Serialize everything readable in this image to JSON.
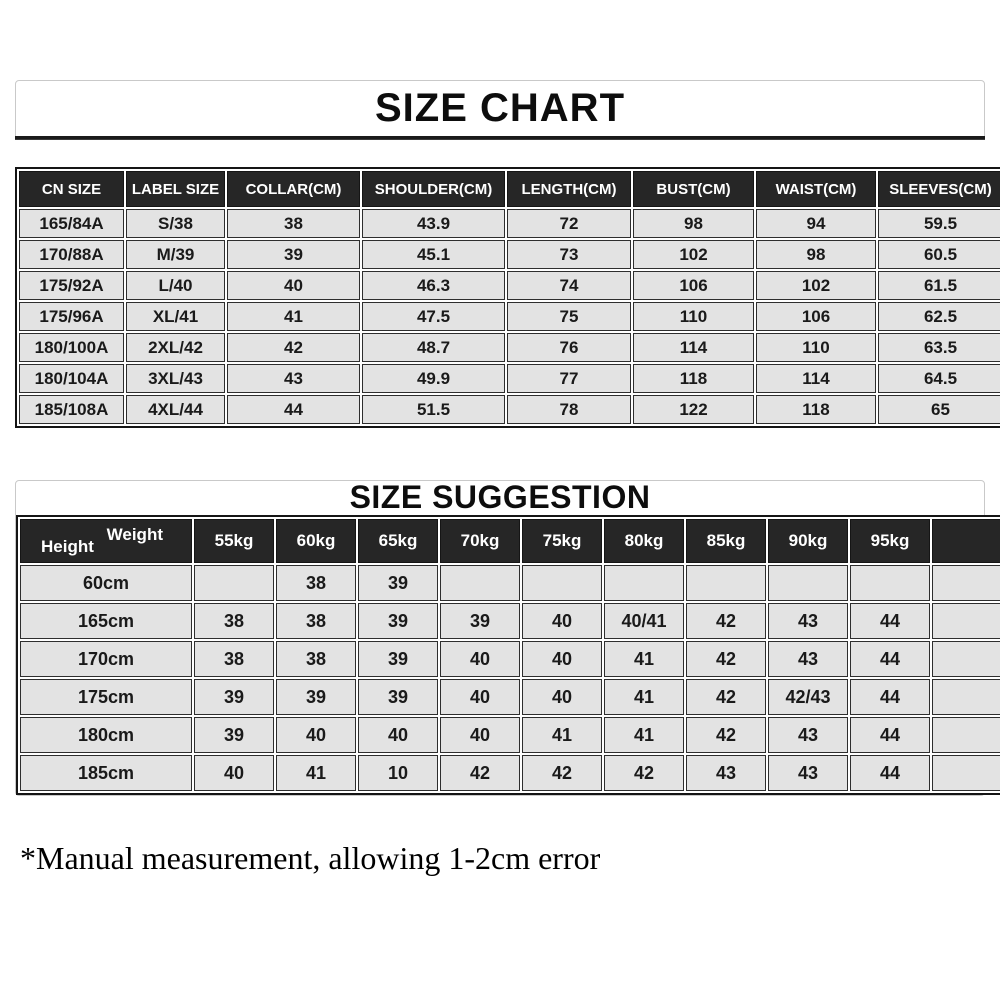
{
  "size_chart": {
    "title": "SIZE CHART",
    "columns": [
      "CN SIZE",
      "LABEL SIZE",
      "COLLAR(CM)",
      "SHOULDER(CM)",
      "LENGTH(CM)",
      "BUST(CM)",
      "WAIST(CM)",
      "SLEEVES(CM)"
    ],
    "rows": [
      [
        "165/84A",
        "S/38",
        "38",
        "43.9",
        "72",
        "98",
        "94",
        "59.5"
      ],
      [
        "170/88A",
        "M/39",
        "39",
        "45.1",
        "73",
        "102",
        "98",
        "60.5"
      ],
      [
        "175/92A",
        "L/40",
        "40",
        "46.3",
        "74",
        "106",
        "102",
        "61.5"
      ],
      [
        "175/96A",
        "XL/41",
        "41",
        "47.5",
        "75",
        "110",
        "106",
        "62.5"
      ],
      [
        "180/100A",
        "2XL/42",
        "42",
        "48.7",
        "76",
        "114",
        "110",
        "63.5"
      ],
      [
        "180/104A",
        "3XL/43",
        "43",
        "49.9",
        "77",
        "118",
        "114",
        "64.5"
      ],
      [
        "185/108A",
        "4XL/44",
        "44",
        "51.5",
        "78",
        "122",
        "118",
        "65"
      ]
    ]
  },
  "size_suggestion": {
    "title": "SIZE SUGGESTION",
    "corner": {
      "top_right": "Weight",
      "bottom_left": "Height"
    },
    "weight_columns": [
      "55kg",
      "60kg",
      "65kg",
      "70kg",
      "75kg",
      "80kg",
      "85kg",
      "90kg",
      "95kg",
      ""
    ],
    "rows": [
      {
        "height": "60cm",
        "values": [
          "",
          "38",
          "39",
          "",
          "",
          "",
          "",
          "",
          "",
          ""
        ]
      },
      {
        "height": "165cm",
        "values": [
          "38",
          "38",
          "39",
          "39",
          "40",
          "40/41",
          "42",
          "43",
          "44",
          ""
        ]
      },
      {
        "height": "170cm",
        "values": [
          "38",
          "38",
          "39",
          "40",
          "40",
          "41",
          "42",
          "43",
          "44",
          ""
        ]
      },
      {
        "height": "175cm",
        "values": [
          "39",
          "39",
          "39",
          "40",
          "40",
          "41",
          "42",
          "42/43",
          "44",
          ""
        ]
      },
      {
        "height": "180cm",
        "values": [
          "39",
          "40",
          "40",
          "40",
          "41",
          "41",
          "42",
          "43",
          "44",
          ""
        ]
      },
      {
        "height": "185cm",
        "values": [
          "40",
          "41",
          "10",
          "42",
          "42",
          "42",
          "43",
          "43",
          "44",
          ""
        ]
      }
    ]
  },
  "footnote": "*Manual measurement, allowing 1-2cm error",
  "colors": {
    "header_bg": "#262626",
    "row_bg": "#e3e3e3",
    "grid_border": "#2e2e2e",
    "box_border": "#c9c9c9",
    "header_text": "#ffffff",
    "cell_text": "#1a1a1a"
  }
}
